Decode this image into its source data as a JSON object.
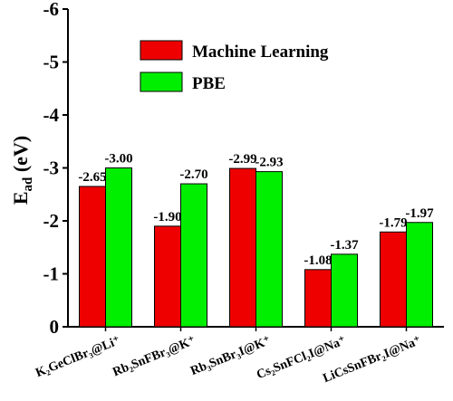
{
  "chart_data": {
    "type": "bar",
    "categories": [
      "K₂GeClBr₃@Li⁺",
      "Rb₂SnFBr₃@K⁺",
      "Rb₃SnBr₃I@K⁺",
      "Cs₂SnFCl₂I@Na⁺",
      "LiCsSnFBr₂I@Na⁺"
    ],
    "series": [
      {
        "name": "Machine Learning",
        "color": "#ee0000",
        "values": [
          -2.65,
          -1.9,
          -2.99,
          -1.08,
          -1.79
        ],
        "labels": [
          "-2.65",
          "-1.90",
          "-2.99",
          "-1.08",
          "-1.79"
        ]
      },
      {
        "name": "PBE",
        "color": "#00ee00",
        "values": [
          -3.0,
          -2.7,
          -2.93,
          -1.37,
          -1.97
        ],
        "labels": [
          "-3.00",
          "-2.70",
          "-2.93",
          "-1.37",
          "-1.97"
        ]
      }
    ],
    "yticks": [
      "0",
      "-1",
      "-2",
      "-3",
      "-4",
      "-5",
      "-6"
    ],
    "ylabel_main": "E",
    "ylabel_sub": "ad",
    "ylabel_unit": " (eV)",
    "ylim": [
      0,
      -6
    ],
    "axis_inverted": true,
    "legend_position": "top-center",
    "grid": false
  }
}
